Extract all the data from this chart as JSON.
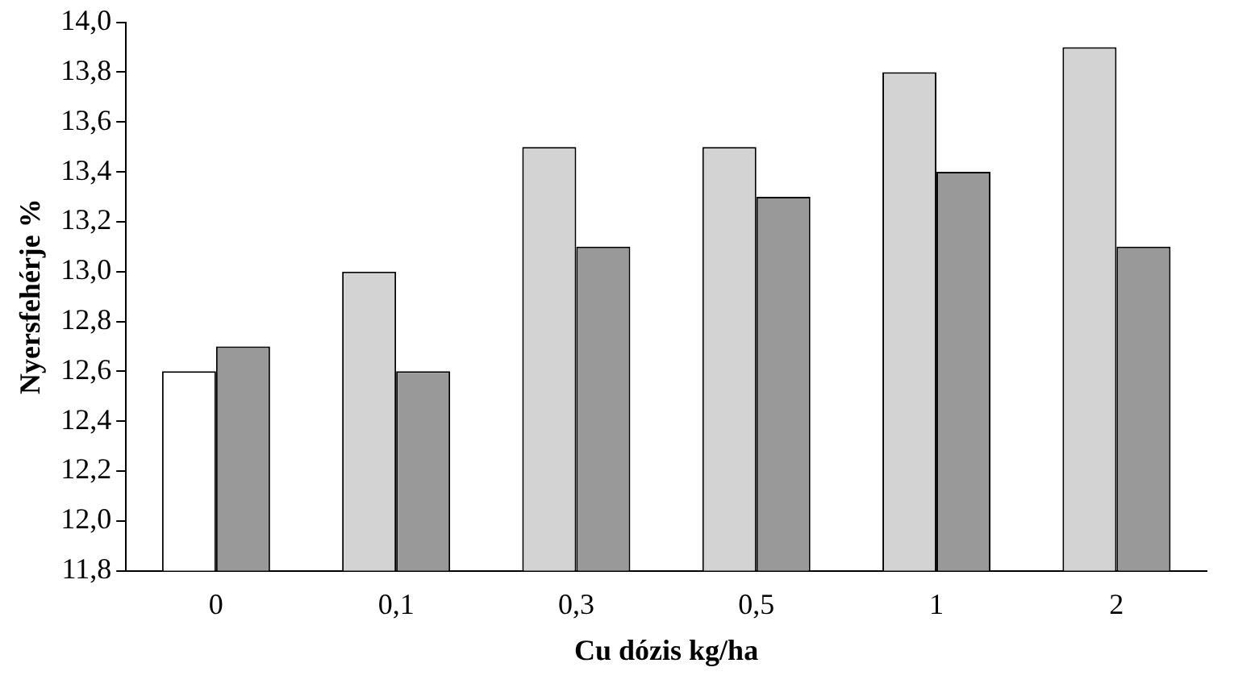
{
  "chart_data": {
    "type": "bar",
    "xlabel": "Cu dózis kg/ha",
    "ylabel": "Nyersfehérje %",
    "categories": [
      "0",
      "0,1",
      "0,3",
      "0,5",
      "1",
      "2"
    ],
    "series": [
      {
        "colors": [
          "#ffffff",
          "#d3d3d3",
          "#d3d3d3",
          "#d3d3d3",
          "#d3d3d3",
          "#d3d3d3"
        ],
        "values": [
          12.6,
          13.0,
          13.5,
          13.5,
          13.8,
          13.9
        ]
      },
      {
        "color": "#999999",
        "values": [
          12.7,
          12.6,
          13.1,
          13.3,
          13.4,
          13.1
        ]
      }
    ],
    "ylim": [
      11.8,
      14.0
    ],
    "yticks": [
      {
        "value": 11.8,
        "label": "11,8"
      },
      {
        "value": 12.0,
        "label": "12,0"
      },
      {
        "value": 12.2,
        "label": "12,2"
      },
      {
        "value": 12.4,
        "label": "12,4"
      },
      {
        "value": 12.6,
        "label": "12,6"
      },
      {
        "value": 12.8,
        "label": "12,8"
      },
      {
        "value": 13.0,
        "label": "13,0"
      },
      {
        "value": 13.2,
        "label": "13,2"
      },
      {
        "value": 13.4,
        "label": "13,4"
      },
      {
        "value": 13.6,
        "label": "13,6"
      },
      {
        "value": 13.8,
        "label": "13,8"
      },
      {
        "value": 14.0,
        "label": "14,0"
      }
    ],
    "grid": false,
    "legend": false
  }
}
